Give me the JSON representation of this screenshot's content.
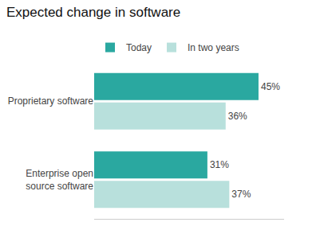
{
  "chart_data": {
    "type": "bar",
    "orientation": "horizontal",
    "title": "Expected change in software",
    "categories": [
      "Proprietary software",
      "Enterprise open\nsource software"
    ],
    "series": [
      {
        "name": "Today",
        "color": "#2aA8A0",
        "values": [
          45,
          31
        ],
        "value_labels": [
          "45%",
          "31%"
        ]
      },
      {
        "name": "In two years",
        "color": "#B8E0DC",
        "values": [
          36,
          37
        ],
        "value_labels": [
          "36%",
          "37%"
        ]
      }
    ],
    "xlim": [
      0,
      52
    ],
    "grid": false,
    "legend": "upper left",
    "data_labels": true,
    "tick_labels": "y"
  }
}
